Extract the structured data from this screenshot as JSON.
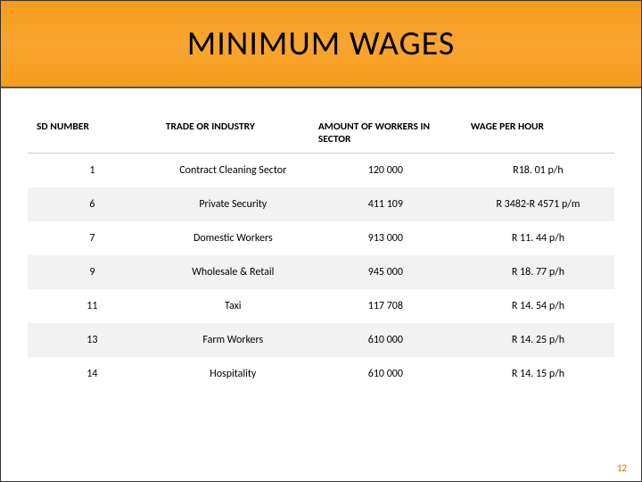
{
  "slide": {
    "title": "MINIMUM WAGES",
    "background_gradient": [
      "#f89c1c",
      "#f7a630",
      "#f89c1c"
    ],
    "title_fontsize": 38,
    "title_color": "#000000",
    "page_number": "12",
    "page_number_color": "#c97a00"
  },
  "table": {
    "header_bg": "#ffffff",
    "row_alt_bg": "#f2f2f2",
    "row_bg": "#ffffff",
    "font_size": 12,
    "header_font_size": 11.5,
    "columns": [
      {
        "key": "sd",
        "label": "SD NUMBER",
        "width": "22%"
      },
      {
        "key": "trade",
        "label": "TRADE OR INDUSTRY",
        "width": "26%"
      },
      {
        "key": "amount",
        "label": "AMOUNT OF WORKERS IN SECTOR",
        "width": "26%"
      },
      {
        "key": "wage",
        "label": "WAGE PER HOUR",
        "width": "26%"
      }
    ],
    "rows": [
      {
        "sd": "1",
        "trade": "Contract Cleaning Sector",
        "amount": "120 000",
        "wage": "R18. 01 p/h"
      },
      {
        "sd": "6",
        "trade": "Private Security",
        "amount": "411 109",
        "wage": "R 3482-R 4571 p/m"
      },
      {
        "sd": "7",
        "trade": "Domestic Workers",
        "amount": "913 000",
        "wage": "R 11. 44 p/h"
      },
      {
        "sd": "9",
        "trade": "Wholesale & Retail",
        "amount": "945 000",
        "wage": "R 18. 77 p/h"
      },
      {
        "sd": "11",
        "trade": "Taxi",
        "amount": "117 708",
        "wage": "R 14. 54 p/h"
      },
      {
        "sd": "13",
        "trade": "Farm Workers",
        "amount": "610 000",
        "wage": "R 14. 25 p/h"
      },
      {
        "sd": "14",
        "trade": "Hospitality",
        "amount": "610 000",
        "wage": "R 14. 15 p/h"
      }
    ]
  }
}
